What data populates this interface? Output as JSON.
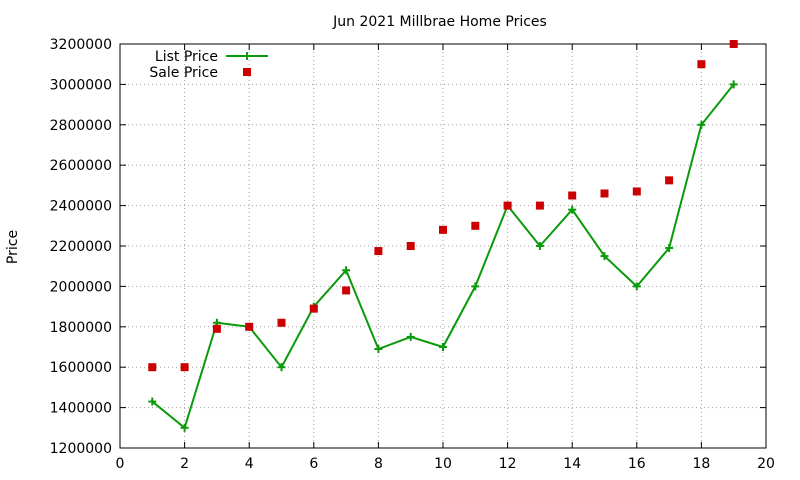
{
  "chart_data": {
    "type": "line",
    "title": "Jun 2021 Millbrae Home Prices",
    "xlabel": "",
    "ylabel": "Price",
    "xlim": [
      0,
      20
    ],
    "ylim": [
      1200000,
      3200000
    ],
    "x_ticks": [
      "0",
      "2",
      "4",
      "6",
      "8",
      "10",
      "12",
      "14",
      "16",
      "18",
      "20"
    ],
    "y_ticks": [
      "1200000",
      "1400000",
      "1600000",
      "1800000",
      "2000000",
      "2200000",
      "2400000",
      "2600000",
      "2800000",
      "3000000",
      "3200000"
    ],
    "grid": true,
    "legend_position": "top-left",
    "series": [
      {
        "name": "List Price",
        "style": "line-with-plus-markers",
        "color": "#0a9a0a",
        "x": [
          1,
          2,
          3,
          4,
          5,
          6,
          7,
          8,
          9,
          10,
          11,
          12,
          13,
          14,
          15,
          16,
          17,
          18,
          19
        ],
        "values": [
          1430000,
          1300000,
          1820000,
          1800000,
          1600000,
          1900000,
          2080000,
          1690000,
          1750000,
          1700000,
          2000000,
          2400000,
          2200000,
          2380000,
          2150000,
          2000000,
          2190000,
          2800000,
          3000000
        ]
      },
      {
        "name": "Sale Price",
        "style": "square-markers",
        "color": "#cc0000",
        "x": [
          1,
          2,
          3,
          4,
          5,
          6,
          7,
          8,
          9,
          10,
          11,
          12,
          13,
          14,
          15,
          16,
          17,
          18,
          19
        ],
        "values": [
          1600000,
          1600000,
          1790000,
          1800000,
          1820000,
          1890000,
          1980000,
          2175000,
          2200000,
          2280000,
          2300000,
          2400000,
          2400000,
          2450000,
          2460000,
          2470000,
          2525000,
          3100000,
          3200000
        ]
      }
    ]
  }
}
